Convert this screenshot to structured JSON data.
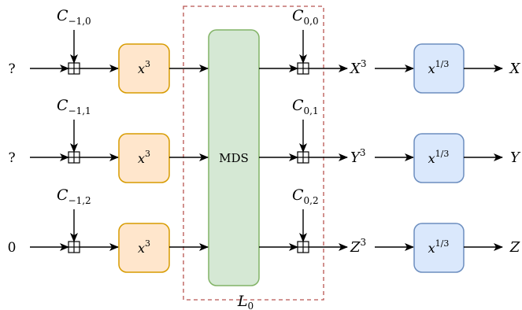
{
  "rows": [
    {
      "input": "?",
      "const_main": "C",
      "const_sub": "−1,0",
      "sbox_base": "x",
      "sbox_exp": "3",
      "out_const_main": "C",
      "out_const_sub": "0,0",
      "mid_var": "X",
      "mid_exp": "3",
      "inv_base": "x",
      "inv_exp": "1/3",
      "output": "X"
    },
    {
      "input": "?",
      "const_main": "C",
      "const_sub": "−1,1",
      "sbox_base": "x",
      "sbox_exp": "3",
      "out_const_main": "C",
      "out_const_sub": "0,1",
      "mid_var": "Y",
      "mid_exp": "3",
      "inv_base": "x",
      "inv_exp": "1/3",
      "output": "Y"
    },
    {
      "input": "0",
      "const_main": "C",
      "const_sub": "−1,2",
      "sbox_base": "x",
      "sbox_exp": "3",
      "out_const_main": "C",
      "out_const_sub": "0,2",
      "mid_var": "Z",
      "mid_exp": "3",
      "inv_base": "x",
      "inv_exp": "1/3",
      "output": "Z"
    }
  ],
  "mds_label": "MDS",
  "layer_label_main": "L",
  "layer_label_sub": "0",
  "colors": {
    "sbox_fill": "#ffe6cc",
    "sbox_stroke": "#d79b00",
    "mds_fill": "#d5e8d4",
    "mds_stroke": "#82b366",
    "inv_fill": "#dae8fc",
    "inv_stroke": "#6c8ebf",
    "layer_border": "#b85450"
  }
}
